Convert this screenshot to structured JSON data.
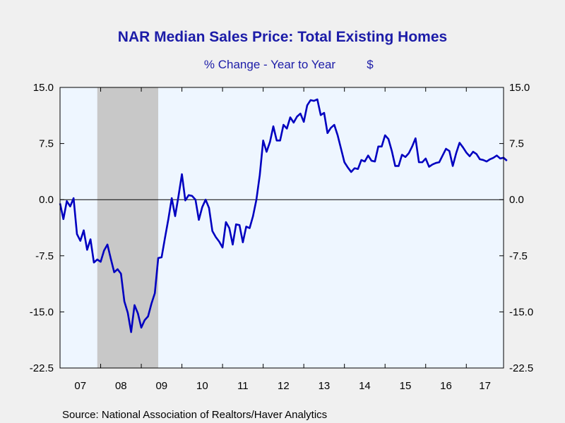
{
  "chart_data": {
    "type": "line",
    "title": "NAR Median Sales Price: Total Existing Homes",
    "subtitle": "% Change - Year to Year",
    "unit": "$",
    "source": "Source:  National Association of Realtors/Haver Analytics",
    "ylim": [
      -22.5,
      15.0
    ],
    "y_ticks": [
      "15.0",
      "7.5",
      "0.0",
      "-7.5",
      "-15.0",
      "-22.5"
    ],
    "x_range": [
      2007.0,
      2017.9167
    ],
    "x_ticks": [
      "07",
      "08",
      "09",
      "10",
      "11",
      "12",
      "13",
      "14",
      "15",
      "16",
      "17"
    ],
    "grid": false,
    "zero_line": true,
    "recession_shading": [
      2007.917,
      2009.417
    ],
    "colors": {
      "line": "#0000c0",
      "plot_bg": "#eef6ff",
      "page_bg": "#f0f0f0",
      "shade": "#c8c8c8",
      "text": "#1c1ca8"
    },
    "series": [
      {
        "start": 2007.0,
        "step": 0.0833333,
        "values": [
          -0.5,
          -2.6,
          -0.2,
          -0.9,
          0.2,
          -4.6,
          -5.5,
          -4.1,
          -6.7,
          -5.3,
          -8.4,
          -8.0,
          -8.3,
          -6.8,
          -6.0,
          -7.9,
          -9.7,
          -9.3,
          -9.9,
          -13.6,
          -15.1,
          -17.7,
          -14.1,
          -15.2,
          -17.1,
          -16.1,
          -15.6,
          -13.9,
          -12.5,
          -7.8,
          -7.7,
          -5.1,
          -2.6,
          0.2,
          -2.2,
          0.5,
          3.4,
          -0.1,
          0.6,
          0.5,
          0.0,
          -2.7,
          -1.0,
          0.0,
          -1.1,
          -4.2,
          -5.0,
          -5.6,
          -6.4,
          -3.0,
          -3.8,
          -6.0,
          -3.3,
          -3.4,
          -5.7,
          -3.6,
          -3.8,
          -2.2,
          0.0,
          3.3,
          7.9,
          6.4,
          7.7,
          9.8,
          7.9,
          7.9,
          10.0,
          9.5,
          11.0,
          10.3,
          11.1,
          11.5,
          10.4,
          12.6,
          13.3,
          13.2,
          13.4,
          11.3,
          11.6,
          8.9,
          9.6,
          10.0,
          8.6,
          6.8,
          5.0,
          4.3,
          3.7,
          4.2,
          4.1,
          5.3,
          5.1,
          5.9,
          5.2,
          5.1,
          7.1,
          7.1,
          8.6,
          8.1,
          6.5,
          4.5,
          4.5,
          6.0,
          5.7,
          6.2,
          7.1,
          8.2,
          5.0,
          5.0,
          5.5,
          4.4,
          4.7,
          4.9,
          5.0,
          5.9,
          6.8,
          6.5,
          4.5,
          6.2,
          7.6,
          7.0,
          6.3,
          5.8,
          6.4,
          6.1,
          5.4,
          5.3,
          5.1,
          5.4,
          5.6,
          5.9,
          5.5,
          5.6,
          5.2
        ]
      }
    ]
  }
}
